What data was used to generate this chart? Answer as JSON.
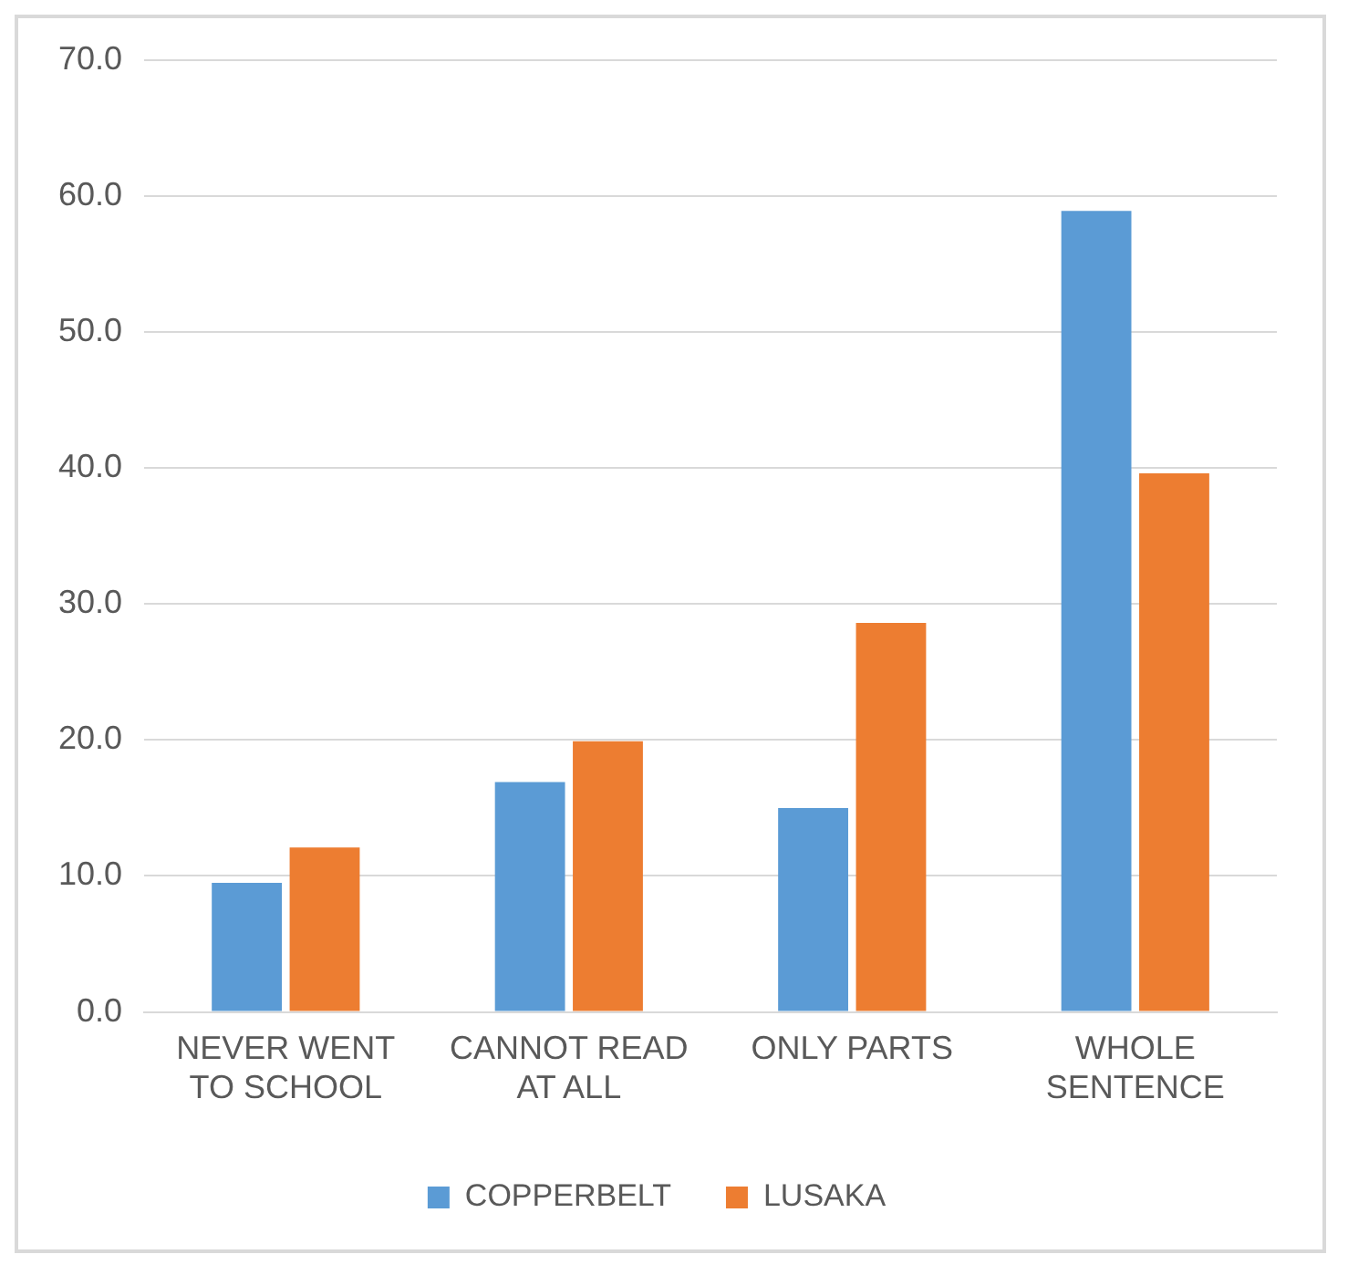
{
  "chart_data": {
    "type": "bar",
    "categories": [
      "NEVER WENT TO SCHOOL",
      "CANNOT READ AT ALL",
      "ONLY PARTS",
      "WHOLE SENTENCE"
    ],
    "series": [
      {
        "name": "COPPERBELT",
        "color": "#5b9bd5",
        "values": [
          9.5,
          16.9,
          15.0,
          58.9
        ]
      },
      {
        "name": "LUSAKA",
        "color": "#ed7d31",
        "values": [
          12.1,
          19.9,
          28.6,
          39.6
        ]
      }
    ],
    "ylim": [
      0,
      70
    ],
    "yticks": [
      {
        "value": 0,
        "label": "0.0"
      },
      {
        "value": 10,
        "label": "10.0"
      },
      {
        "value": 20,
        "label": "20.0"
      },
      {
        "value": 30,
        "label": "30.0"
      },
      {
        "value": 40,
        "label": "40.0"
      },
      {
        "value": 50,
        "label": "50.0"
      },
      {
        "value": 60,
        "label": "60.0"
      },
      {
        "value": 70,
        "label": "70.0"
      }
    ],
    "grid": "y",
    "legend": "bottom"
  }
}
